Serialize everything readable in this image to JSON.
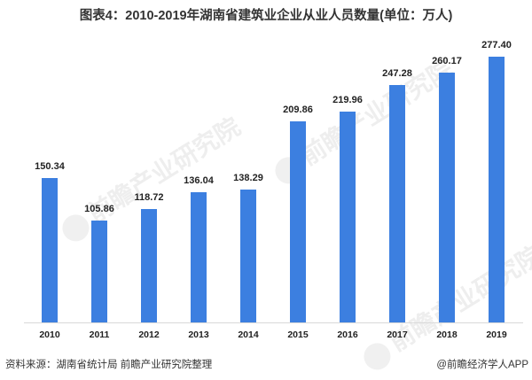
{
  "title": "图表4：2010-2019年湖南省建筑业企业从业人员数量(单位：万人)",
  "watermark": "前瞻产业研究院",
  "source": "资料来源：湖南省统计局 前瞻产业研究院整理",
  "credit": "@前瞻经济学人APP",
  "colors": {
    "bar": "#3c7fe0",
    "axis": "#d9d9d9"
  },
  "chart_data": {
    "type": "bar",
    "title": "图表4：2010-2019年湖南省建筑业企业从业人员数量(单位：万人)",
    "xlabel": "",
    "ylabel": "万人",
    "categories": [
      "2010",
      "2011",
      "2012",
      "2013",
      "2014",
      "2015",
      "2016",
      "2017",
      "2018",
      "2019"
    ],
    "values": [
      150.34,
      105.86,
      118.72,
      136.04,
      138.29,
      209.86,
      219.96,
      247.28,
      260.17,
      277.4
    ],
    "value_labels": [
      "150.34",
      "105.86",
      "118.72",
      "136.04",
      "138.29",
      "209.86",
      "219.96",
      "247.28",
      "260.17",
      "277.40"
    ],
    "ylim": [
      0,
      300
    ],
    "grid": false,
    "legend": null,
    "data_labels": true
  }
}
